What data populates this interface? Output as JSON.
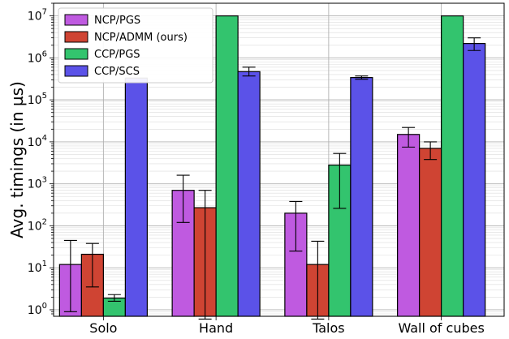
{
  "chart_data": {
    "type": "bar",
    "ylabel": "Avg. timings (in µs)",
    "yscale": "log",
    "ylim": [
      0.7,
      20000000
    ],
    "grid": true,
    "legend_position": "top-left",
    "categories": [
      "Solo",
      "Hand",
      "Talos",
      "Wall of cubes"
    ],
    "ytick_labels": [
      {
        "base": "10",
        "exp": "0"
      },
      {
        "base": "10",
        "exp": "1"
      },
      {
        "base": "10",
        "exp": "2"
      },
      {
        "base": "10",
        "exp": "3"
      },
      {
        "base": "10",
        "exp": "4"
      },
      {
        "base": "10",
        "exp": "5"
      },
      {
        "base": "10",
        "exp": "6"
      },
      {
        "base": "10",
        "exp": "7"
      }
    ],
    "series": [
      {
        "name": "NCP/PGS",
        "color": "#bf5ae0",
        "values": [
          12,
          700,
          200,
          15000
        ],
        "err_low": [
          0.9,
          120,
          25,
          7500
        ],
        "err_high": [
          45,
          1600,
          380,
          22000
        ]
      },
      {
        "name": "NCP/ADMM (ours)",
        "color": "#cf4433",
        "values": [
          21,
          270,
          12,
          7000
        ],
        "err_low": [
          3.5,
          0.6,
          0.6,
          3800
        ],
        "err_high": [
          38,
          700,
          43,
          10000
        ]
      },
      {
        "name": "CCP/PGS",
        "color": "#33c46e",
        "values": [
          1.9,
          10000000,
          2800,
          10000000
        ],
        "err_low": [
          1.6,
          null,
          260,
          null
        ],
        "err_high": [
          2.3,
          null,
          5300,
          null
        ]
      },
      {
        "name": "CCP/SCS",
        "color": "#5b52e8",
        "values": [
          330000,
          470000,
          340000,
          2200000
        ],
        "err_low": [
          null,
          370000,
          310000,
          1500000
        ],
        "err_high": [
          null,
          600000,
          370000,
          3000000
        ]
      }
    ]
  }
}
